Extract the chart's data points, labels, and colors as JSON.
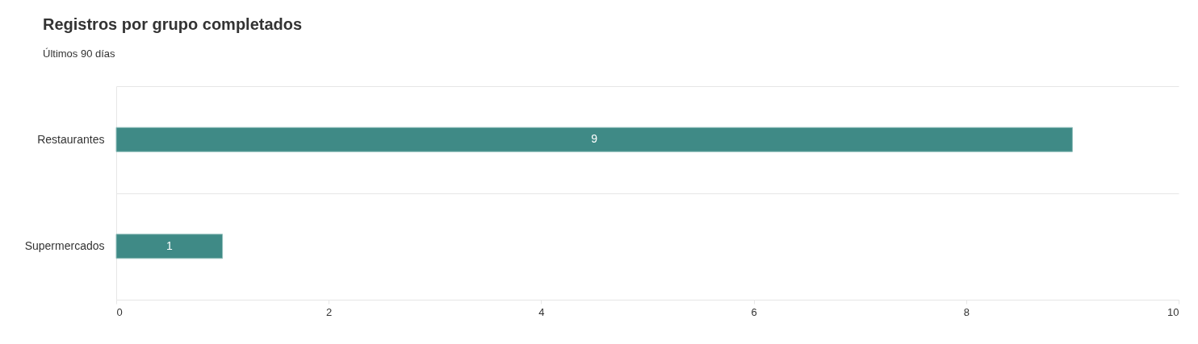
{
  "chart_data": {
    "type": "bar",
    "title": "Registros por grupo completados",
    "subtitle": "Últimos 90 días",
    "orientation": "horizontal",
    "categories": [
      "Restaurantes",
      "Supermercados"
    ],
    "values": [
      9,
      1
    ],
    "color": "#3f8a86",
    "xlim": [
      0,
      10
    ],
    "xticks": [
      0,
      2,
      4,
      6,
      8,
      10
    ],
    "grid": "y",
    "data_labels": true
  }
}
